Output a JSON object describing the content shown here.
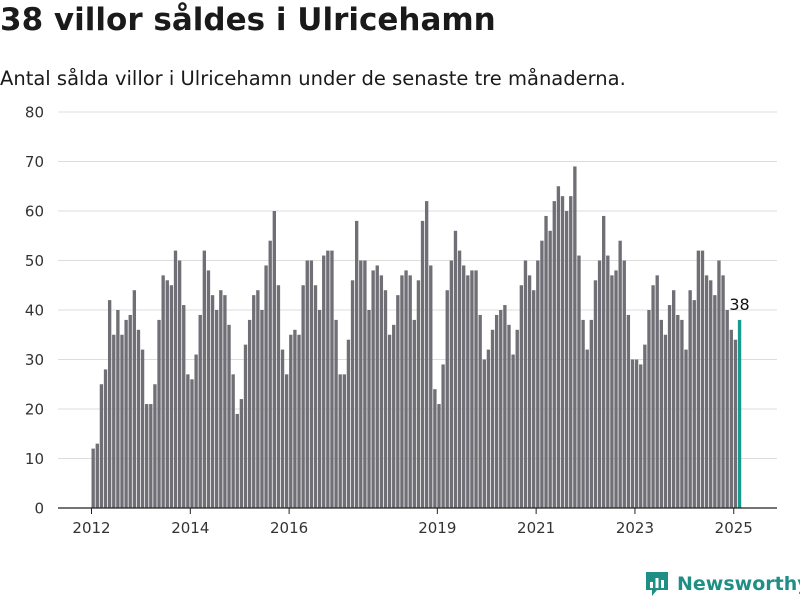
{
  "title": "38 villor såldes i Ulricehamn",
  "subtitle": "Antal sålda villor i Ulricehamn under de senaste tre månaderna.",
  "brand": {
    "name": "Newsworthy",
    "icon": "newsworthy-logo-icon"
  },
  "colors": {
    "bar": "#706f76",
    "highlight": "#1a9a8f",
    "grid": "#dddddd",
    "axis": "#222222",
    "text": "#333333",
    "brand": "#1f8f86"
  },
  "chart_data": {
    "type": "bar",
    "x_start": "2012-01",
    "x_interval": "month",
    "xticks": [
      "2012",
      "2014",
      "2016",
      "2019",
      "2021",
      "2023",
      "2025"
    ],
    "yticks": [
      "0",
      "10",
      "20",
      "30",
      "40",
      "50",
      "60",
      "70",
      "80"
    ],
    "ylim": [
      0,
      80
    ],
    "grid": true,
    "highlight_label": "38",
    "values": [
      12,
      13,
      25,
      28,
      42,
      35,
      40,
      35,
      38,
      39,
      44,
      36,
      32,
      21,
      21,
      25,
      38,
      47,
      46,
      45,
      52,
      50,
      41,
      27,
      26,
      31,
      39,
      52,
      48,
      43,
      40,
      44,
      43,
      37,
      27,
      19,
      22,
      33,
      38,
      43,
      44,
      40,
      49,
      54,
      60,
      45,
      32,
      27,
      35,
      36,
      35,
      45,
      50,
      50,
      45,
      40,
      51,
      52,
      52,
      38,
      27,
      27,
      34,
      46,
      58,
      50,
      50,
      40,
      48,
      49,
      47,
      44,
      35,
      37,
      43,
      47,
      48,
      47,
      38,
      46,
      58,
      62,
      49,
      24,
      21,
      29,
      44,
      50,
      56,
      52,
      49,
      47,
      48,
      48,
      39,
      30,
      32,
      36,
      39,
      40,
      41,
      37,
      31,
      36,
      45,
      50,
      47,
      44,
      50,
      54,
      59,
      56,
      62,
      65,
      63,
      60,
      63,
      69,
      51,
      38,
      32,
      38,
      46,
      50,
      59,
      51,
      47,
      48,
      54,
      50,
      39,
      30,
      30,
      29,
      33,
      40,
      45,
      47,
      38,
      35,
      41,
      44,
      39,
      38,
      32,
      44,
      42,
      52,
      52,
      47,
      46,
      43,
      50,
      47,
      40,
      36,
      34,
      38
    ]
  }
}
